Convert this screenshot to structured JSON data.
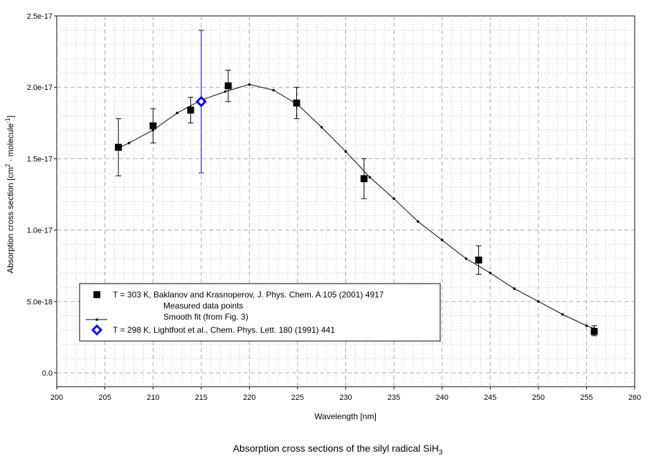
{
  "chart_data": {
    "type": "scatter",
    "title": "Absorption cross sections of the silyl radical SiH",
    "title_sub": "3",
    "xlabel": "Wavelength [nm]",
    "ylabel_parts": [
      "Absorption cross section [cm",
      "2",
      "· molecule",
      "-1",
      "]"
    ],
    "xlim": [
      200,
      260
    ],
    "ylim": [
      0,
      2.5e-17
    ],
    "xticks": [
      200,
      205,
      210,
      215,
      220,
      225,
      230,
      235,
      240,
      245,
      250,
      255,
      260
    ],
    "xtick_labels": [
      "200",
      "205",
      "210",
      "215",
      "220",
      "225",
      "230",
      "235",
      "240",
      "245",
      "250",
      "255",
      "260"
    ],
    "yticks": [
      0,
      5e-18,
      1e-17,
      1.5e-17,
      2e-17,
      2.5e-17
    ],
    "ytick_labels": [
      "0.0",
      "5.0e-18",
      "1.0e-17",
      "1.5e-17",
      "2.0e-17",
      "2.5e-17"
    ],
    "grid": true,
    "legend_placement": "bottom-left",
    "series": [
      {
        "name": "T = 303 K, Baklanov and Krasnoperov, J. Phys. Chem. A 105 (2001) 4917",
        "sub": "Measured data points",
        "marker": "square",
        "color": "#000000",
        "x": [
          206.4,
          210.0,
          213.9,
          217.8,
          224.9,
          231.9,
          243.8,
          255.8
        ],
        "y": [
          1.58e-17,
          1.73e-17,
          1.84e-17,
          2.01e-17,
          1.89e-17,
          1.36e-17,
          7.9e-18,
          2.9e-18
        ],
        "err_low": [
          1.38e-17,
          1.61e-17,
          1.75e-17,
          1.9e-17,
          1.78e-17,
          1.22e-17,
          6.9e-18,
          2.6e-18
        ],
        "err_high": [
          1.78e-17,
          1.85e-17,
          1.93e-17,
          2.12e-17,
          2e-17,
          1.5e-17,
          8.9e-18,
          3.3e-18
        ]
      },
      {
        "name": "Smooth fit (from Fig. 3)",
        "marker": "line-dot",
        "color": "#000000",
        "x": [
          206.4,
          207.5,
          210,
          212.5,
          215,
          217.5,
          220,
          222.5,
          225,
          227.5,
          230,
          232.5,
          235,
          237.5,
          240,
          242.5,
          245,
          247.5,
          250,
          252.5,
          255,
          255.8
        ],
        "y": [
          1.575e-17,
          1.61e-17,
          1.7e-17,
          1.82e-17,
          1.91e-17,
          1.97e-17,
          2.02e-17,
          1.98e-17,
          1.88e-17,
          1.72e-17,
          1.55e-17,
          1.37e-17,
          1.22e-17,
          1.06e-17,
          9.3e-18,
          8e-18,
          7e-18,
          5.9e-18,
          5e-18,
          4.1e-18,
          3.3e-18,
          3.1e-18
        ]
      },
      {
        "name": "T = 298 K, Lightfoot et al., Chem. Phys. Lett. 180 (1991) 441",
        "marker": "diamond",
        "color": "#0000ff",
        "x": [
          215.0
        ],
        "y": [
          1.9e-17
        ],
        "err_low": [
          1.4e-17
        ],
        "err_high": [
          2.4e-17
        ]
      }
    ]
  }
}
